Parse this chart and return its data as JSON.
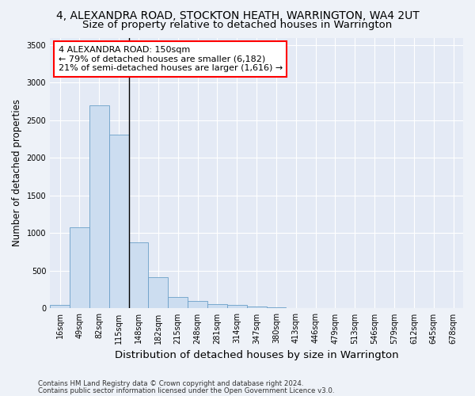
{
  "title_line1": "4, ALEXANDRA ROAD, STOCKTON HEATH, WARRINGTON, WA4 2UT",
  "title_line2": "Size of property relative to detached houses in Warrington",
  "xlabel": "Distribution of detached houses by size in Warrington",
  "ylabel": "Number of detached properties",
  "bar_color": "#ccddf0",
  "bar_edge_color": "#6a9fc8",
  "categories": [
    "16sqm",
    "49sqm",
    "82sqm",
    "115sqm",
    "148sqm",
    "182sqm",
    "215sqm",
    "248sqm",
    "281sqm",
    "314sqm",
    "347sqm",
    "380sqm",
    "413sqm",
    "446sqm",
    "479sqm",
    "513sqm",
    "546sqm",
    "579sqm",
    "612sqm",
    "645sqm",
    "678sqm"
  ],
  "values": [
    50,
    1080,
    2700,
    2310,
    880,
    410,
    155,
    95,
    60,
    50,
    25,
    15,
    8,
    5,
    2,
    1,
    1,
    1,
    1,
    1,
    1
  ],
  "ylim": [
    0,
    3600
  ],
  "yticks": [
    0,
    500,
    1000,
    1500,
    2000,
    2500,
    3000,
    3500
  ],
  "annotation_line1": "4 ALEXANDRA ROAD: 150sqm",
  "annotation_line2": "← 79% of detached houses are smaller (6,182)",
  "annotation_line3": "21% of semi-detached houses are larger (1,616) →",
  "vline_x_idx": 3.5,
  "footer_line1": "Contains HM Land Registry data © Crown copyright and database right 2024.",
  "footer_line2": "Contains public sector information licensed under the Open Government Licence v3.0.",
  "background_color": "#eef2f8",
  "plot_bg_color": "#e4eaf5",
  "grid_color": "#ffffff",
  "title_fontsize": 10,
  "subtitle_fontsize": 9.5,
  "tick_fontsize": 7,
  "ylabel_fontsize": 8.5,
  "xlabel_fontsize": 9.5,
  "footer_fontsize": 6.2
}
